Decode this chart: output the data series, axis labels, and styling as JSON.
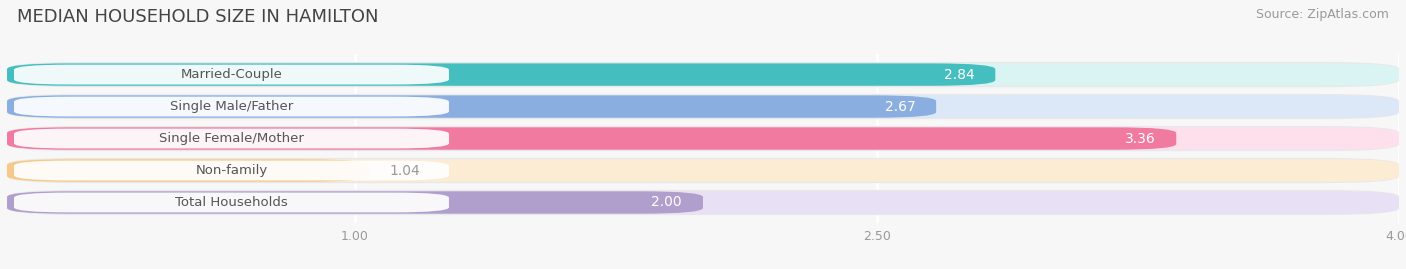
{
  "title": "MEDIAN HOUSEHOLD SIZE IN HAMILTON",
  "source": "Source: ZipAtlas.com",
  "categories": [
    "Married-Couple",
    "Single Male/Father",
    "Single Female/Mother",
    "Non-family",
    "Total Households"
  ],
  "values": [
    2.84,
    2.67,
    3.36,
    1.04,
    2.0
  ],
  "bar_colors": [
    "#45bec0",
    "#8aaee0",
    "#f07aa0",
    "#f5c98a",
    "#b09fcc"
  ],
  "bar_bg_colors": [
    "#daf3f3",
    "#dce8f7",
    "#fde0ec",
    "#fdecd4",
    "#e8e0f4"
  ],
  "xlim_min": 0,
  "xlim_max": 4.0,
  "xticks": [
    1.0,
    2.5,
    4.0
  ],
  "label_inside_color": "#ffffff",
  "label_outside_color": "#999999",
  "value_inside_color": "#ffffff",
  "value_outside_color": "#999999",
  "title_fontsize": 13,
  "source_fontsize": 9,
  "bar_label_fontsize": 10,
  "category_fontsize": 9.5,
  "background_color": "#f7f7f7",
  "bar_bg_outer_color": "#e8e8e8"
}
